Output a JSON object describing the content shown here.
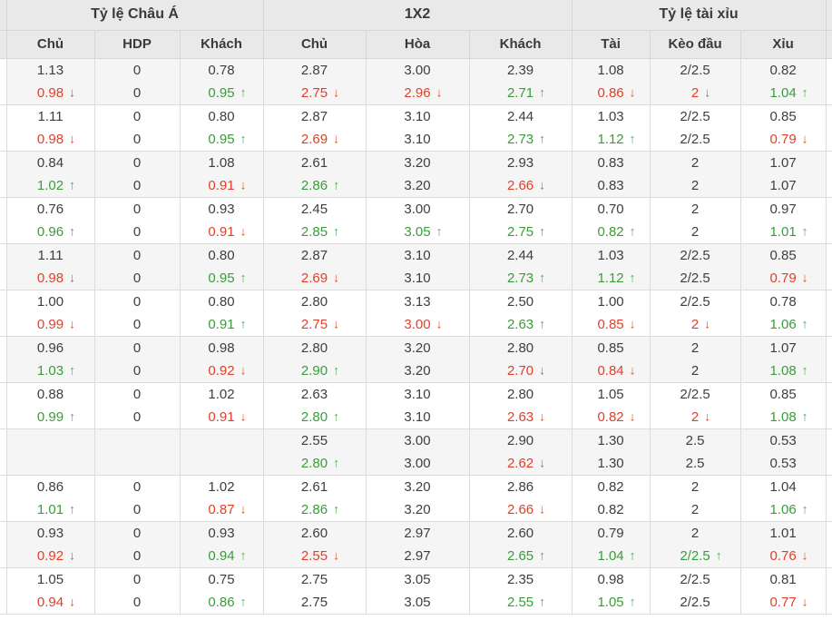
{
  "table_title": "odds-comparison",
  "cell_encoding": "value|color(r=red,g=green)|arrow(u=up,d=down); empty string = blank cell",
  "colors": {
    "header_bg": "#e9e9e9",
    "row_shade_bg": "#f5f5f5",
    "row_white_bg": "#ffffff",
    "border": "#dcdcdc",
    "text": "#3e3e3e",
    "red": "#e0402a",
    "green": "#3a9c3a",
    "arrow_up": "#4fae4f",
    "arrow_down": "#f05227"
  },
  "sections": [
    {
      "label": "Tỷ lệ Châu Á"
    },
    {
      "label": "1X2"
    },
    {
      "label": "Tỷ lệ tài xỉu"
    }
  ],
  "columns": [
    "Chủ",
    "HDP",
    "Khách",
    "Chủ",
    "Hòa",
    "Khách",
    "Tài",
    "Kèo đầu",
    "Xỉu"
  ],
  "column_keys": [
    "asian-home",
    "asian-hdp",
    "asian-away",
    "1x2-home",
    "1x2-draw",
    "1x2-away",
    "ou-over",
    "ou-line",
    "ou-under"
  ],
  "arrow_glyphs": {
    "up": "↑",
    "down": "↓"
  },
  "rows": [
    {
      "open": [
        "1.13",
        "0",
        "0.78",
        "2.87",
        "3.00",
        "2.39",
        "1.08",
        "2/2.5",
        "0.82"
      ],
      "live": [
        "0.98|r|d",
        "0",
        "0.95|g|u",
        "2.75|r|d",
        "2.96|r|d",
        "2.71|g|u",
        "0.86|r|d",
        "2|r|d",
        "1.04|g|u"
      ]
    },
    {
      "open": [
        "1.11",
        "0",
        "0.80",
        "2.87",
        "3.10",
        "2.44",
        "1.03",
        "2/2.5",
        "0.85"
      ],
      "live": [
        "0.98|r|d",
        "0",
        "0.95|g|u",
        "2.69|r|d",
        "3.10",
        "2.73|g|u",
        "1.12|g|u",
        "2/2.5",
        "0.79|r|d"
      ]
    },
    {
      "open": [
        "0.84",
        "0",
        "1.08",
        "2.61",
        "3.20",
        "2.93",
        "0.83",
        "2",
        "1.07"
      ],
      "live": [
        "1.02|g|u",
        "0",
        "0.91|r|d",
        "2.86|g|u",
        "3.20",
        "2.66|r|d",
        "0.83",
        "2",
        "1.07"
      ]
    },
    {
      "open": [
        "0.76",
        "0",
        "0.93",
        "2.45",
        "3.00",
        "2.70",
        "0.70",
        "2",
        "0.97"
      ],
      "live": [
        "0.96|g|u",
        "0",
        "0.91|r|d",
        "2.85|g|u",
        "3.05|g|u",
        "2.75|g|u",
        "0.82|g|u",
        "2",
        "1.01|g|u"
      ]
    },
    {
      "open": [
        "1.11",
        "0",
        "0.80",
        "2.87",
        "3.10",
        "2.44",
        "1.03",
        "2/2.5",
        "0.85"
      ],
      "live": [
        "0.98|r|d",
        "0",
        "0.95|g|u",
        "2.69|r|d",
        "3.10",
        "2.73|g|u",
        "1.12|g|u",
        "2/2.5",
        "0.79|r|d"
      ]
    },
    {
      "open": [
        "1.00",
        "0",
        "0.80",
        "2.80",
        "3.13",
        "2.50",
        "1.00",
        "2/2.5",
        "0.78"
      ],
      "live": [
        "0.99|r|d",
        "0",
        "0.91|g|u",
        "2.75|r|d",
        "3.00|r|d",
        "2.63|g|u",
        "0.85|r|d",
        "2|r|d",
        "1.06|g|u"
      ]
    },
    {
      "open": [
        "0.96",
        "0",
        "0.98",
        "2.80",
        "3.20",
        "2.80",
        "0.85",
        "2",
        "1.07"
      ],
      "live": [
        "1.03|g|u",
        "0",
        "0.92|r|d",
        "2.90|g|u",
        "3.20",
        "2.70|r|d",
        "0.84|r|d",
        "2",
        "1.08|g|u"
      ]
    },
    {
      "open": [
        "0.88",
        "0",
        "1.02",
        "2.63",
        "3.10",
        "2.80",
        "1.05",
        "2/2.5",
        "0.85"
      ],
      "live": [
        "0.99|g|u",
        "0",
        "0.91|r|d",
        "2.80|g|u",
        "3.10",
        "2.63|r|d",
        "0.82|r|d",
        "2|r|d",
        "1.08|g|u"
      ]
    },
    {
      "open": [
        "",
        "",
        "",
        "2.55",
        "3.00",
        "2.90",
        "1.30",
        "2.5",
        "0.53"
      ],
      "live": [
        "",
        "",
        "",
        "2.80|g|u",
        "3.00",
        "2.62|r|d",
        "1.30",
        "2.5",
        "0.53"
      ]
    },
    {
      "open": [
        "0.86",
        "0",
        "1.02",
        "2.61",
        "3.20",
        "2.86",
        "0.82",
        "2",
        "1.04"
      ],
      "live": [
        "1.01|g|u",
        "0",
        "0.87|r|d",
        "2.86|g|u",
        "3.20",
        "2.66|r|d",
        "0.82",
        "2",
        "1.06|g|u"
      ]
    },
    {
      "open": [
        "0.93",
        "0",
        "0.93",
        "2.60",
        "2.97",
        "2.60",
        "0.79",
        "2",
        "1.01"
      ],
      "live": [
        "0.92|r|d",
        "0",
        "0.94|g|u",
        "2.55|r|d",
        "2.97",
        "2.65|g|u",
        "1.04|g|u",
        "2/2.5|g|u",
        "0.76|r|d"
      ]
    },
    {
      "open": [
        "1.05",
        "0",
        "0.75",
        "2.75",
        "3.05",
        "2.35",
        "0.98",
        "2/2.5",
        "0.81"
      ],
      "live": [
        "0.94|r|d",
        "0",
        "0.86|g|u",
        "2.75",
        "3.05",
        "2.55|g|u",
        "1.05|g|u",
        "2/2.5",
        "0.77|r|d"
      ]
    }
  ]
}
